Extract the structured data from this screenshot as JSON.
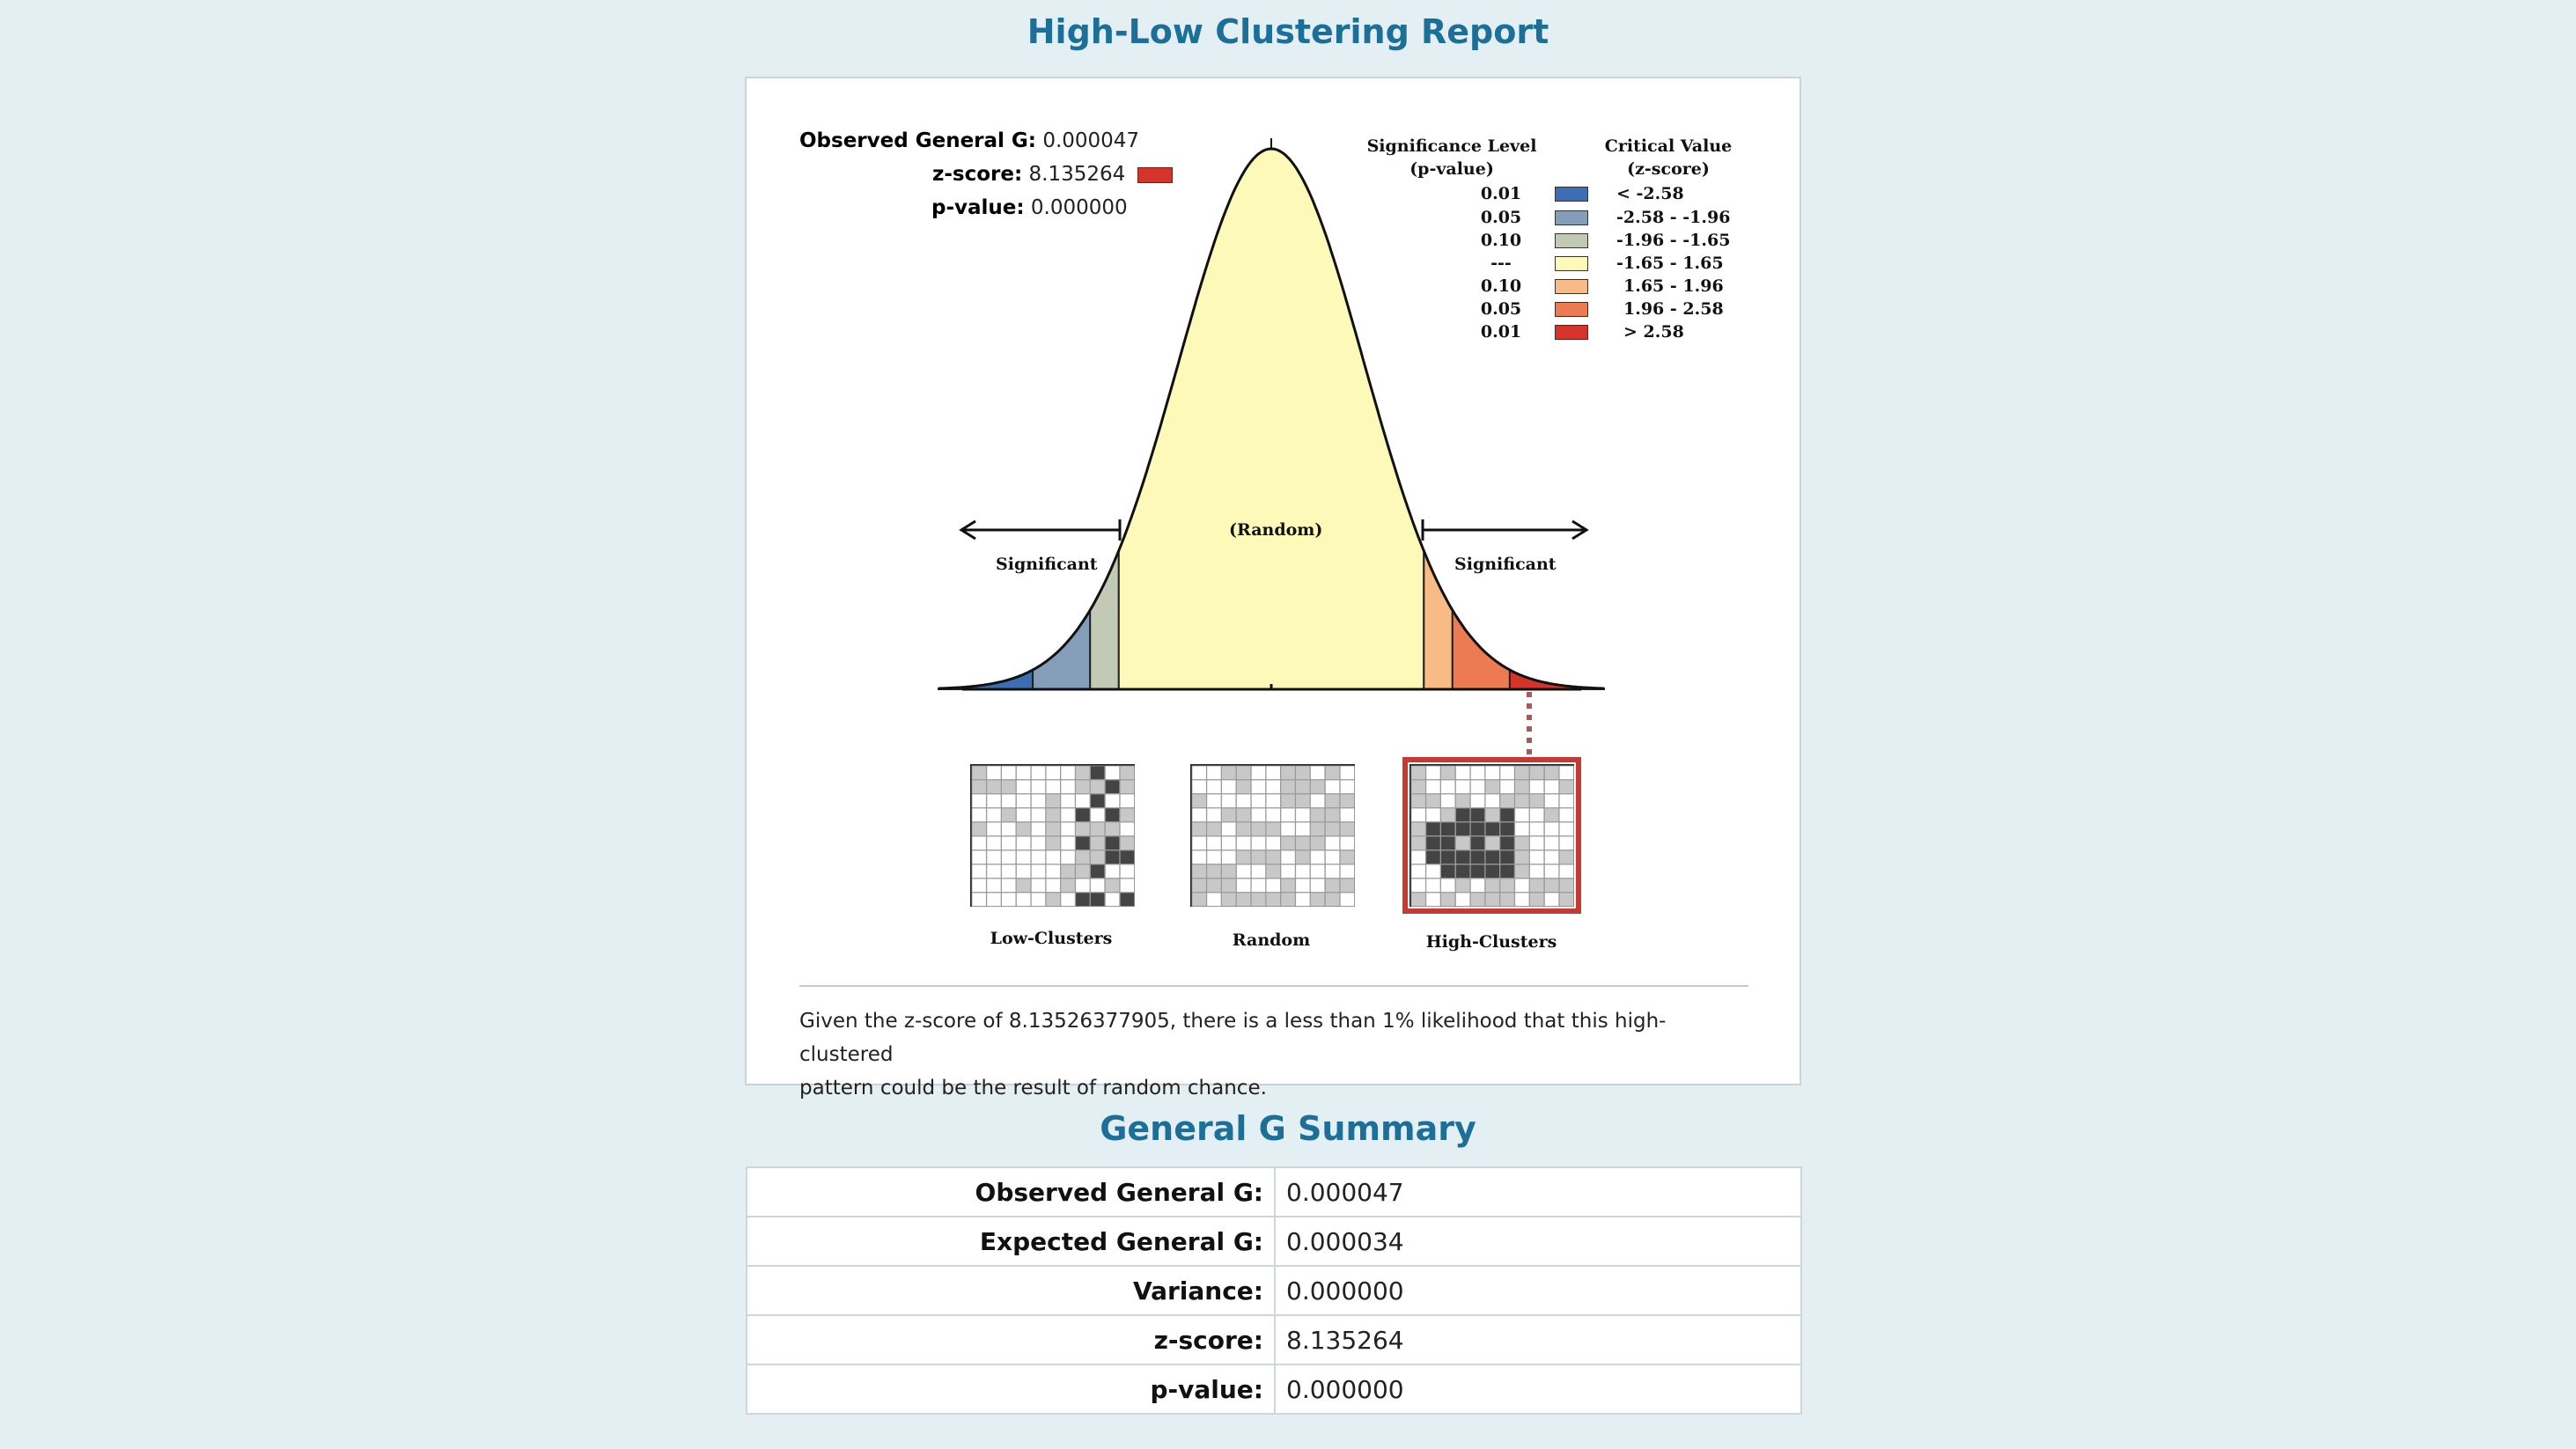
{
  "report": {
    "title": "High-Low Clustering Report",
    "stats": {
      "observed_label": "Observed General G:",
      "observed_value": "0.000047",
      "zscore_label": "z-score:",
      "zscore_value": "8.135264",
      "pvalue_label": "p-value:",
      "pvalue_value": "0.000000"
    },
    "legend": {
      "sig_header_line1": "Significance Level",
      "sig_header_line2": "(p-value)",
      "crit_header_line1": "Critical Value",
      "crit_header_line2": "(z-score)",
      "rows": [
        {
          "p": "0.01",
          "z": "< -2.58",
          "color": "#3d6db5"
        },
        {
          "p": "0.05",
          "z": "-2.58 - -1.96",
          "color": "#849eba"
        },
        {
          "p": "0.10",
          "z": "-1.96 - -1.65",
          "color": "#c2cab6"
        },
        {
          "p": "---",
          "z": "-1.65 - 1.65",
          "color": "#fdfab9"
        },
        {
          "p": "0.10",
          "z": "1.65 - 1.96",
          "color": "#f9bb86"
        },
        {
          "p": "0.05",
          "z": "1.96 - 2.58",
          "color": "#ec7b53"
        },
        {
          "p": "0.01",
          "z": "> 2.58",
          "color": "#d43429"
        }
      ]
    },
    "curve": {
      "random_label": "(Random)",
      "left_label": "Significant",
      "right_label": "Significant"
    },
    "maps": {
      "low_label": "Low-Clusters",
      "random_label": "Random",
      "high_label": "High-Clusters"
    },
    "summary_line1": "Given the z-score of 8.13526377905, there is a less than 1% likelihood that this high-clustered",
    "summary_line2": "pattern could be the result of random chance.",
    "highlight_color": "#d43429"
  },
  "summary_table": {
    "title": "General G Summary",
    "rows": [
      {
        "label": "Observed General G:",
        "value": "0.000047"
      },
      {
        "label": "Expected General G:",
        "value": "0.000034"
      },
      {
        "label": "Variance:",
        "value": "0.000000"
      },
      {
        "label": "z-score:",
        "value": "8.135264"
      },
      {
        "label": "p-value:",
        "value": "0.000000"
      }
    ]
  }
}
